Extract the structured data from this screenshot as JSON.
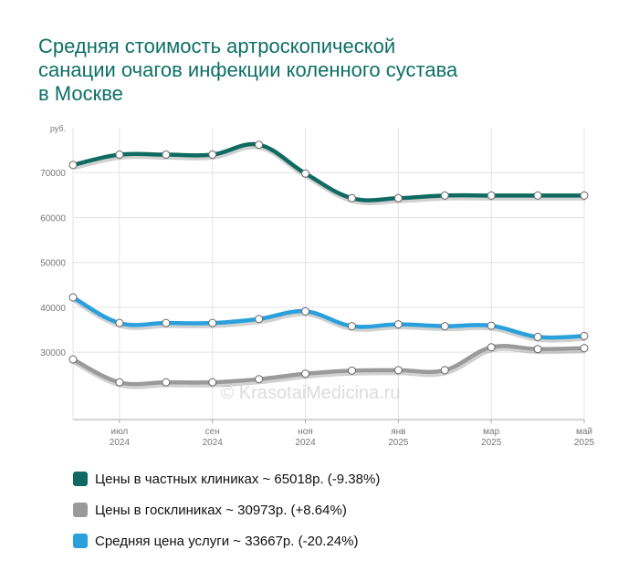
{
  "title_lines": [
    "Средняя стоимость артроскопической",
    "санации очагов инфекции коленного сустава",
    "в Москве"
  ],
  "chart_data": {
    "type": "line",
    "title": "Средняя стоимость артроскопической санации очагов инфекции коленного сустава в Москве",
    "ylabel": "руб.",
    "ylim": [
      15000,
      80000
    ],
    "y_ticks": [
      {
        "value": 30000,
        "label": "30000"
      },
      {
        "value": 40000,
        "label": "40000"
      },
      {
        "value": 50000,
        "label": "50000"
      },
      {
        "value": 60000,
        "label": "60000"
      },
      {
        "value": 70000,
        "label": "70000"
      }
    ],
    "x": [
      "2024-06",
      "2024-07",
      "2024-08",
      "2024-09",
      "2024-10",
      "2024-11",
      "2024-12",
      "2025-01",
      "2025-02",
      "2025-03",
      "2025-04",
      "2025-05"
    ],
    "x_tick_labels": [
      {
        "index": 1,
        "month": "июл",
        "year": "2024"
      },
      {
        "index": 3,
        "month": "сен",
        "year": "2024"
      },
      {
        "index": 5,
        "month": "ноя",
        "year": "2024"
      },
      {
        "index": 7,
        "month": "янв",
        "year": "2025"
      },
      {
        "index": 9,
        "month": "мар",
        "year": "2025"
      },
      {
        "index": 11,
        "month": "май",
        "year": "2025"
      }
    ],
    "grid": true,
    "watermark": "© KrasotaiMedicina.ru",
    "legend_position": "bottom",
    "series": [
      {
        "name": "Цены в частных клиниках",
        "legend": "Цены в частных клиниках ~ 65018р. (-9.38%)",
        "color": "#0f6b61",
        "values": [
          71700,
          74000,
          74000,
          74000,
          76200,
          69800,
          64300,
          64300,
          64900,
          64900,
          64900,
          64900
        ]
      },
      {
        "name": "Цены в госклиниках",
        "legend": "Цены в госклиниках ~ 30973р. (+8.64%)",
        "color": "#9a9a9a",
        "values": [
          28400,
          23300,
          23300,
          23300,
          24000,
          25200,
          25900,
          26000,
          26000,
          31100,
          30700,
          30900
        ]
      },
      {
        "name": "Средняя цена услуги",
        "legend": "Средняя цена услуги ~ 33667р. (-20.24%)",
        "color": "#2aa0dc",
        "values": [
          42200,
          36500,
          36500,
          36500,
          37400,
          39100,
          35800,
          36200,
          35800,
          35900,
          33400,
          33600
        ]
      }
    ]
  }
}
